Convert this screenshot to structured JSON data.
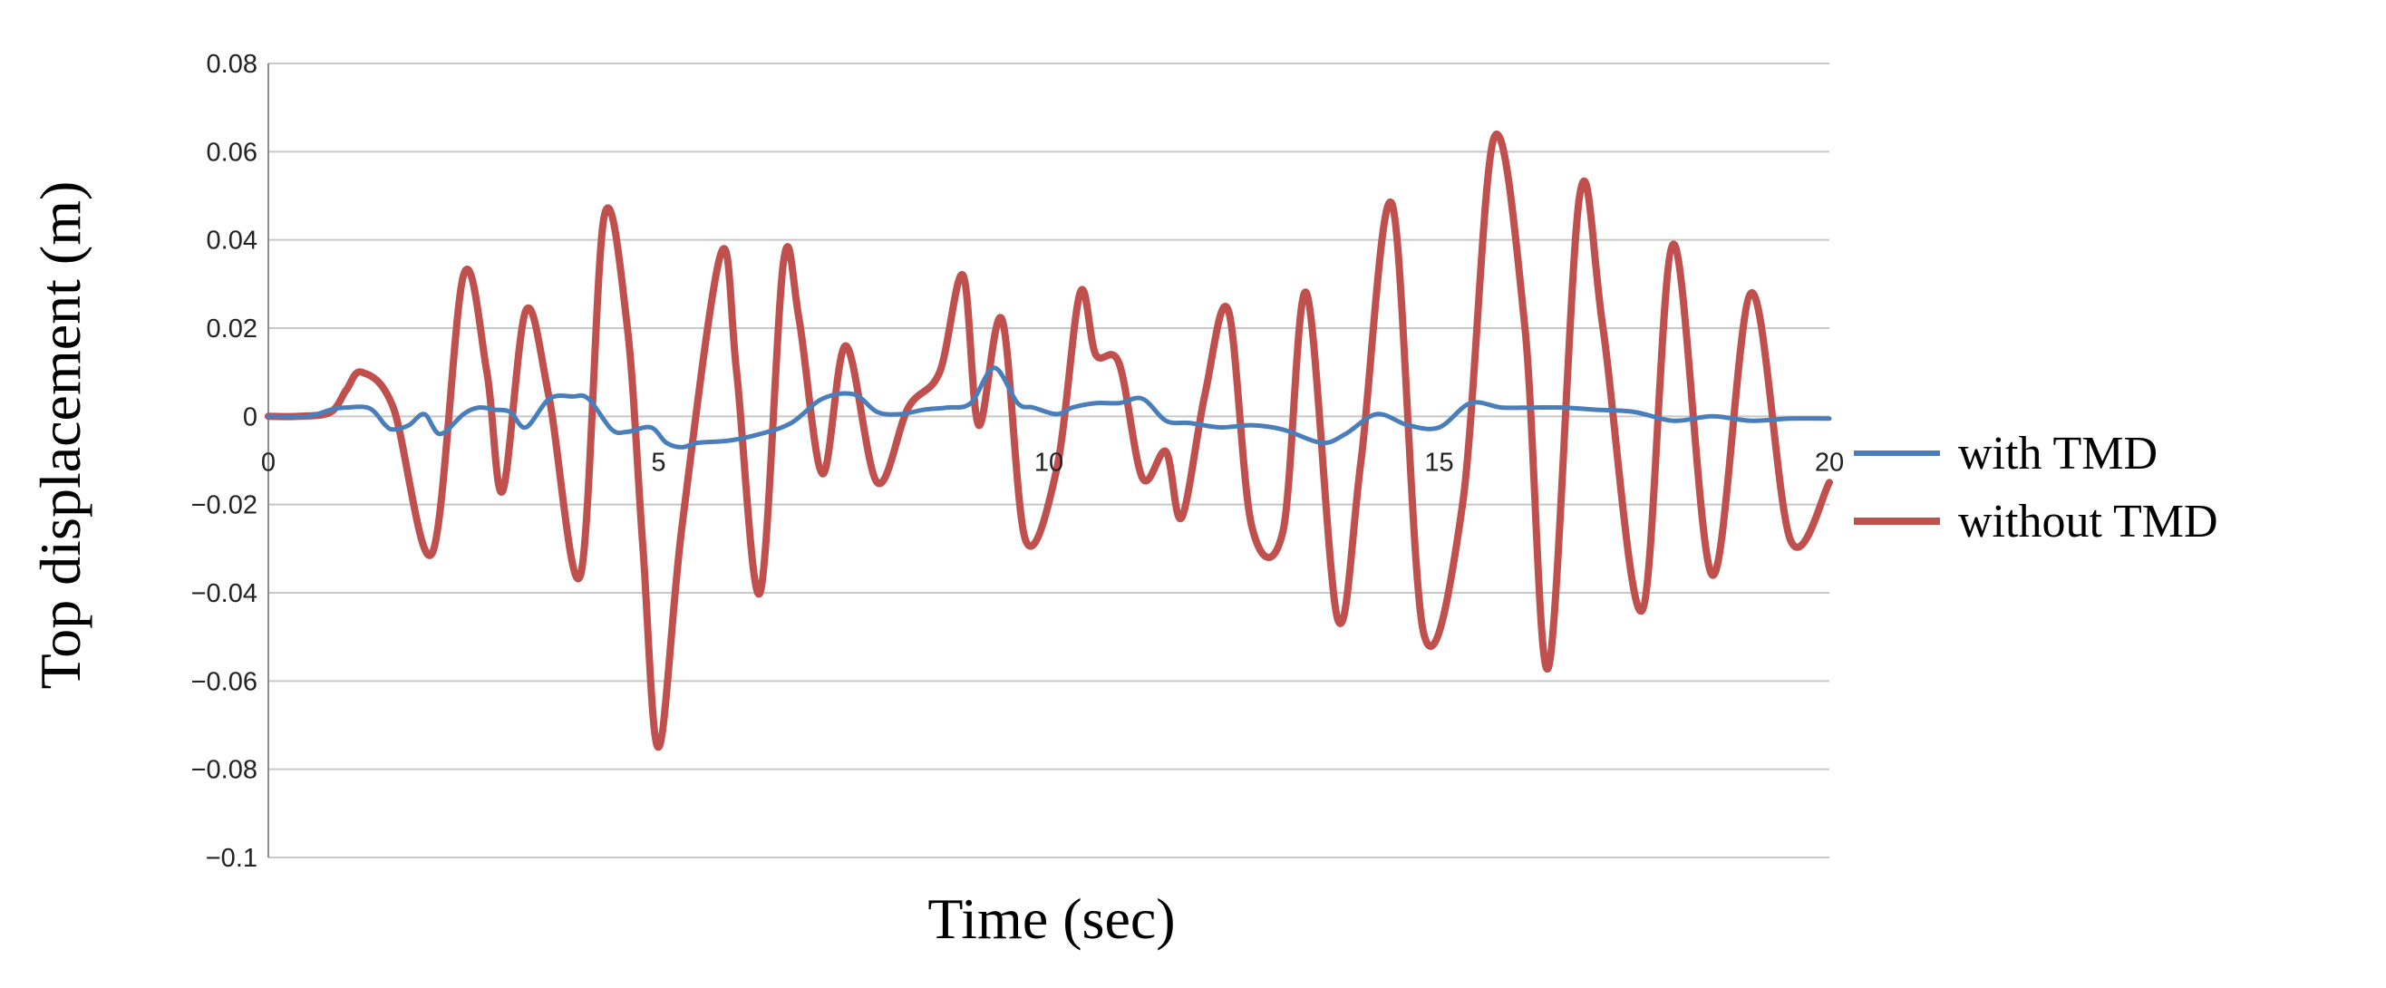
{
  "chart_data": {
    "type": "line",
    "title": "",
    "xlabel": "Time (sec)",
    "ylabel": "Top displacement (m)",
    "xlim": [
      0,
      20
    ],
    "ylim": [
      -0.1,
      0.08
    ],
    "x_ticks": [
      0,
      5,
      10,
      15,
      20
    ],
    "x_tick_labels": [
      "0",
      "5",
      "10",
      "15",
      "20"
    ],
    "y_ticks": [
      0.08,
      0.06,
      0.04,
      0.02,
      0,
      -0.02,
      -0.04,
      -0.06,
      -0.08,
      -0.1
    ],
    "y_tick_labels": [
      "0.08",
      "0.06",
      "0.04",
      "0.02",
      "0",
      "−0.02",
      "−0.04",
      "−0.06",
      "−0.08",
      "−0.1"
    ],
    "grid": true,
    "legend_position": "right",
    "series": [
      {
        "name": "with TMD",
        "color": "#4a7ebb",
        "x": [
          0,
          0.5,
          0.8,
          1.0,
          1.3,
          1.5,
          1.6,
          1.8,
          2.0,
          2.2,
          2.5,
          2.7,
          2.9,
          3.1,
          3.3,
          3.6,
          3.9,
          4.1,
          4.4,
          4.6,
          4.9,
          5.1,
          5.3,
          5.5,
          5.9,
          6.3,
          6.7,
          7.1,
          7.5,
          7.8,
          8.1,
          8.4,
          8.7,
          9.0,
          9.3,
          9.6,
          9.8,
          10.1,
          10.3,
          10.6,
          10.9,
          11.2,
          11.5,
          11.8,
          12.2,
          12.6,
          13.0,
          13.5,
          13.8,
          14.2,
          14.6,
          15.0,
          15.4,
          15.8,
          16.2,
          16.6,
          17.0,
          17.5,
          18.0,
          18.5,
          19.0,
          19.5,
          20.0
        ],
        "values": [
          0,
          0,
          0.0015,
          0.002,
          0.0018,
          -0.002,
          -0.003,
          -0.002,
          0.0005,
          -0.004,
          0.0005,
          0.002,
          0.0015,
          0.001,
          -0.0025,
          0.004,
          0.0045,
          0.004,
          -0.003,
          -0.0035,
          -0.0025,
          -0.006,
          -0.007,
          -0.006,
          -0.0055,
          -0.004,
          -0.0015,
          0.004,
          0.005,
          0.001,
          0.0005,
          0.0015,
          0.002,
          0.003,
          0.011,
          0.003,
          0.002,
          0.0005,
          0.002,
          0.003,
          0.003,
          0.004,
          -0.001,
          -0.0015,
          -0.0025,
          -0.002,
          -0.003,
          -0.006,
          -0.004,
          0.0005,
          -0.002,
          -0.0025,
          0.003,
          0.002,
          0.002,
          0.002,
          0.0015,
          0.001,
          -0.001,
          0,
          -0.001,
          -0.0005,
          -0.0005
        ]
      },
      {
        "name": "without TMD",
        "color": "#c0504d",
        "x": [
          0,
          0.4,
          0.8,
          1.0,
          1.2,
          1.6,
          2.1,
          2.5,
          2.8,
          3.0,
          3.3,
          3.6,
          4.0,
          4.3,
          4.6,
          4.8,
          5.0,
          5.3,
          5.8,
          6.0,
          6.3,
          6.6,
          6.8,
          7.1,
          7.4,
          7.8,
          8.2,
          8.6,
          8.9,
          9.1,
          9.4,
          9.7,
          10.1,
          10.4,
          10.6,
          10.9,
          11.2,
          11.5,
          11.7,
          12.0,
          12.3,
          12.6,
          13.0,
          13.3,
          13.7,
          14.0,
          14.4,
          14.8,
          15.3,
          15.7,
          16.1,
          16.4,
          16.8,
          17.1,
          17.6,
          18.0,
          18.5,
          19.0,
          19.5,
          20.0
        ],
        "values": [
          0,
          0,
          0.001,
          0.006,
          0.01,
          0.002,
          -0.031,
          0.032,
          0.01,
          -0.017,
          0.024,
          0.004,
          -0.036,
          0.045,
          0.02,
          -0.03,
          -0.075,
          -0.025,
          0.037,
          0.01,
          -0.04,
          0.035,
          0.022,
          -0.013,
          0.016,
          -0.015,
          0.002,
          0.01,
          0.032,
          -0.002,
          0.022,
          -0.028,
          -0.012,
          0.028,
          0.014,
          0.012,
          -0.014,
          -0.008,
          -0.023,
          0.005,
          0.024,
          -0.025,
          -0.026,
          0.028,
          -0.046,
          -0.01,
          0.048,
          -0.049,
          -0.02,
          0.063,
          0.02,
          -0.057,
          0.05,
          0.02,
          -0.044,
          0.039,
          -0.036,
          0.028,
          -0.028,
          -0.015
        ]
      }
    ]
  }
}
